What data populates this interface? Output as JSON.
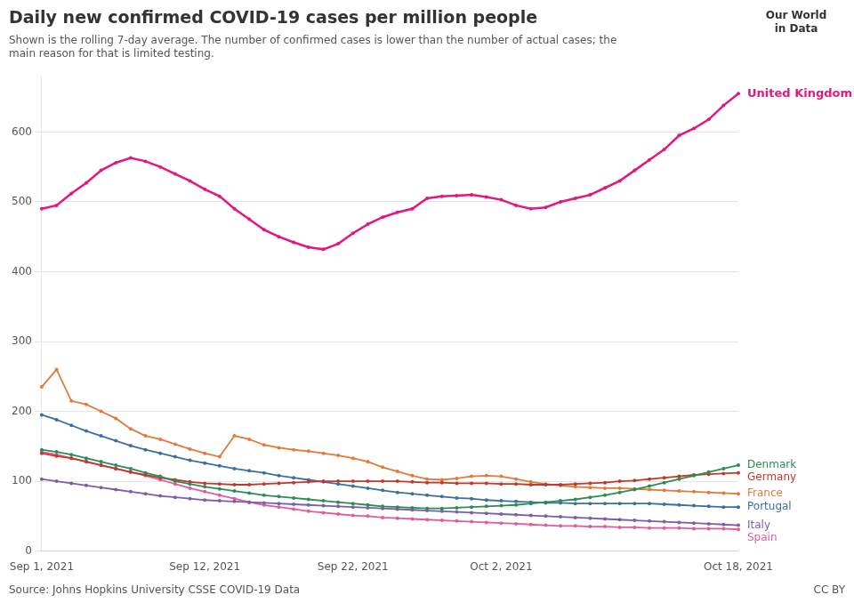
{
  "chart_data": {
    "type": "line",
    "title": "Daily new confirmed COVID-19 cases per million people",
    "subtitle": "Shown is the rolling 7-day average. The number of confirmed cases is lower than the number of actual cases; the\nmain reason for that is limited testing.",
    "annotations": [
      "Source: Johns Hopkins University CSSE COVID-19 Data",
      "CC BY",
      "Our World\nin Data"
    ],
    "categories": [
      "Sep 1, 2021",
      null,
      null,
      null,
      null,
      null,
      null,
      null,
      null,
      null,
      null,
      "Sep 12, 2021",
      null,
      null,
      null,
      null,
      null,
      null,
      null,
      null,
      null,
      "Sep 22, 2021",
      null,
      null,
      null,
      null,
      null,
      null,
      null,
      null,
      null,
      "Oct 2, 2021",
      null,
      null,
      null,
      null,
      null,
      null,
      null,
      null,
      null,
      null,
      null,
      null,
      null,
      null,
      null,
      "Oct 18, 2021"
    ],
    "series": [
      {
        "name": "United Kingdom",
        "color": "#e4177e",
        "values": [
          490,
          495,
          512,
          527,
          545,
          556,
          563,
          558,
          550,
          540,
          530,
          518,
          508,
          490,
          475,
          460,
          450,
          442,
          435,
          432,
          440,
          455,
          468,
          478,
          485,
          490,
          505,
          508,
          509,
          510,
          507,
          503,
          495,
          490,
          492,
          500,
          505,
          510,
          520,
          530,
          545,
          560,
          575,
          595,
          605,
          618,
          638,
          655
        ]
      },
      {
        "name": "Denmark",
        "color": "#2e8b57",
        "values": [
          145,
          142,
          138,
          133,
          128,
          123,
          118,
          112,
          107,
          100,
          96,
          92,
          89,
          86,
          83,
          80,
          78,
          76,
          74,
          72,
          70,
          68,
          66,
          64,
          63,
          62,
          61,
          61,
          62,
          63,
          64,
          65,
          66,
          68,
          70,
          72,
          74,
          77,
          80,
          84,
          88,
          93,
          98,
          103,
          108,
          113,
          118,
          123
        ]
      },
      {
        "name": "Germany",
        "color": "#c0392b",
        "values": [
          140,
          136,
          133,
          128,
          123,
          118,
          113,
          109,
          105,
          102,
          99,
          97,
          96,
          95,
          95,
          96,
          97,
          98,
          99,
          100,
          100,
          100,
          100,
          100,
          100,
          99,
          98,
          98,
          97,
          97,
          97,
          96,
          96,
          95,
          95,
          95,
          96,
          97,
          98,
          100,
          101,
          103,
          105,
          107,
          109,
          110,
          111,
          112
        ]
      },
      {
        "name": "France",
        "color": "#e07b39",
        "values": [
          235,
          260,
          215,
          210,
          200,
          190,
          175,
          165,
          160,
          153,
          146,
          140,
          135,
          165,
          160,
          152,
          148,
          145,
          143,
          140,
          137,
          133,
          128,
          120,
          114,
          108,
          103,
          102,
          104,
          107,
          108,
          107,
          103,
          99,
          96,
          94,
          92,
          91,
          90,
          90,
          89,
          88,
          87,
          86,
          85,
          84,
          83,
          82
        ]
      },
      {
        "name": "Portugal",
        "color": "#3b6fa0",
        "values": [
          195,
          188,
          180,
          172,
          165,
          158,
          151,
          145,
          140,
          135,
          130,
          126,
          122,
          118,
          115,
          112,
          108,
          105,
          102,
          99,
          96,
          93,
          90,
          87,
          84,
          82,
          80,
          78,
          76,
          75,
          73,
          72,
          71,
          70,
          69,
          69,
          68,
          68,
          68,
          68,
          68,
          68,
          67,
          66,
          65,
          64,
          63,
          63
        ]
      },
      {
        "name": "Italy",
        "color": "#7b5ea7",
        "values": [
          103,
          100,
          97,
          94,
          91,
          88,
          85,
          82,
          79,
          77,
          75,
          73,
          72,
          71,
          70,
          69,
          68,
          67,
          66,
          65,
          64,
          63,
          62,
          61,
          60,
          59,
          58,
          57,
          56,
          55,
          54,
          53,
          52,
          51,
          50,
          49,
          48,
          47,
          46,
          45,
          44,
          43,
          42,
          41,
          40,
          39,
          38,
          37
        ]
      },
      {
        "name": "Spain",
        "color": "#e05c9e",
        "values": [
          142,
          138,
          133,
          128,
          123,
          118,
          113,
          108,
          102,
          96,
          90,
          85,
          80,
          75,
          70,
          66,
          63,
          60,
          57,
          55,
          53,
          51,
          50,
          48,
          47,
          46,
          45,
          44,
          43,
          42,
          41,
          40,
          39,
          38,
          37,
          36,
          36,
          35,
          35,
          34,
          34,
          33,
          33,
          33,
          32,
          32,
          32,
          31
        ]
      }
    ],
    "marker": "circle",
    "ylim": [
      0,
      680
    ],
    "yticks": [
      0,
      100,
      200,
      300,
      400,
      500,
      600
    ],
    "grid": true
  }
}
